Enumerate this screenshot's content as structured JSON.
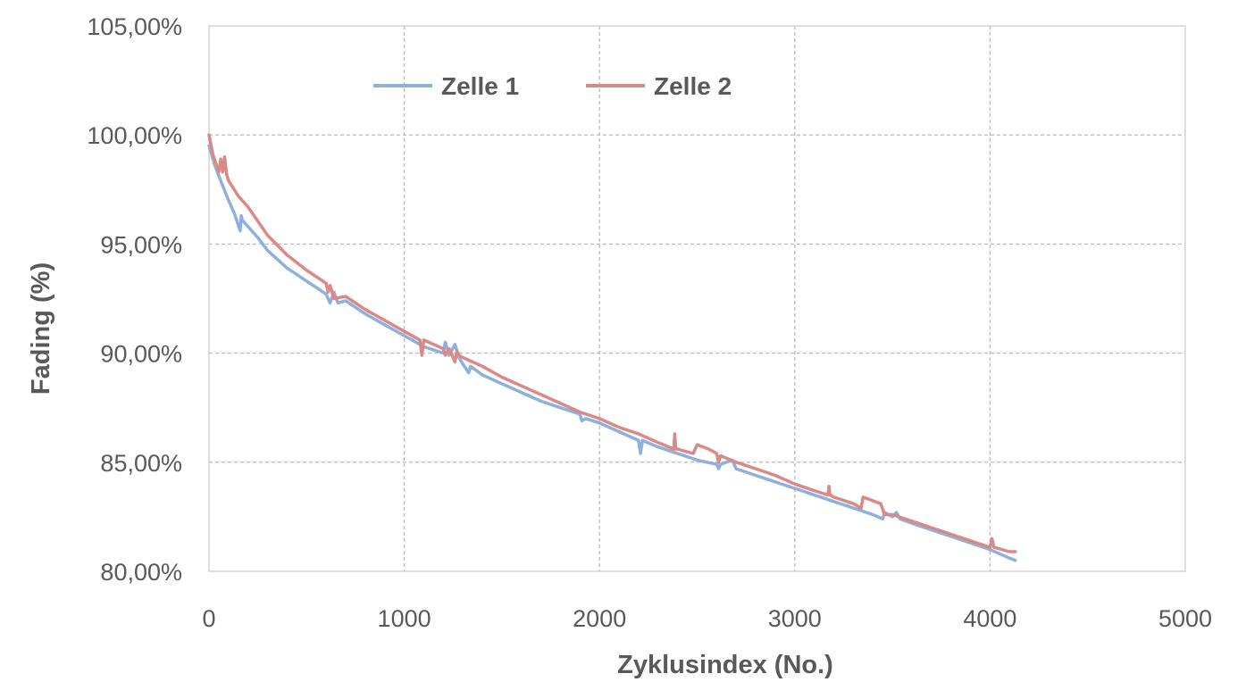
{
  "chart_data": {
    "type": "line",
    "title": "",
    "xlabel": "Zyklusindex (No.)",
    "ylabel": "Fading (%)",
    "xlim": [
      0,
      5000
    ],
    "ylim": [
      80,
      105
    ],
    "x_ticks": [
      "0",
      "1000",
      "2000",
      "3000",
      "4000",
      "5000"
    ],
    "y_ticks": [
      "80,00%",
      "85,00%",
      "90,00%",
      "95,00%",
      "100,00%",
      "105,00%"
    ],
    "grid": true,
    "legend_position": "top-left",
    "series": [
      {
        "name": "Zelle 1",
        "color": "#8FB0DC",
        "x": [
          0,
          30,
          60,
          100,
          130,
          160,
          165,
          170,
          200,
          250,
          300,
          400,
          500,
          600,
          620,
          640,
          660,
          700,
          800,
          900,
          1000,
          1100,
          1200,
          1210,
          1230,
          1260,
          1280,
          1300,
          1330,
          1340,
          1400,
          1500,
          1600,
          1700,
          1800,
          1900,
          1910,
          1930,
          2000,
          2100,
          2200,
          2210,
          2220,
          2300,
          2400,
          2500,
          2600,
          2610,
          2620,
          2680,
          2700,
          2800,
          2900,
          3000,
          3100,
          3200,
          3300,
          3400,
          3450,
          3460,
          3500,
          3520,
          3540,
          3600,
          3700,
          3800,
          3900,
          4000,
          4100,
          4130
        ],
        "y": [
          99.5,
          98.6,
          97.9,
          97.0,
          96.4,
          95.6,
          96.3,
          96.1,
          95.8,
          95.3,
          94.7,
          93.9,
          93.3,
          92.7,
          92.3,
          92.8,
          92.3,
          92.4,
          91.8,
          91.3,
          90.8,
          90.3,
          90.0,
          90.5,
          89.9,
          90.4,
          89.8,
          89.5,
          89.1,
          89.4,
          89.0,
          88.6,
          88.2,
          87.8,
          87.5,
          87.2,
          86.9,
          87.0,
          86.8,
          86.4,
          86.0,
          85.4,
          86.0,
          85.7,
          85.4,
          85.1,
          84.9,
          84.7,
          84.9,
          85.1,
          84.7,
          84.4,
          84.1,
          83.8,
          83.5,
          83.2,
          82.9,
          82.6,
          82.4,
          82.7,
          82.5,
          82.7,
          82.4,
          82.2,
          81.9,
          81.6,
          81.3,
          81.0,
          80.6,
          80.5
        ]
      },
      {
        "name": "Zelle 2",
        "color": "#D98A87",
        "x": [
          0,
          20,
          50,
          60,
          70,
          80,
          90,
          100,
          150,
          200,
          300,
          400,
          500,
          600,
          610,
          620,
          640,
          700,
          800,
          900,
          1000,
          1080,
          1090,
          1100,
          1150,
          1200,
          1210,
          1230,
          1260,
          1270,
          1280,
          1300,
          1400,
          1500,
          1600,
          1700,
          1800,
          1900,
          2000,
          2100,
          2200,
          2300,
          2380,
          2385,
          2390,
          2400,
          2480,
          2500,
          2560,
          2600,
          2610,
          2620,
          2700,
          2800,
          2900,
          3000,
          3100,
          3170,
          3175,
          3180,
          3200,
          3300,
          3340,
          3350,
          3440,
          3460,
          3500,
          3600,
          3700,
          3800,
          3900,
          4000,
          4010,
          4020,
          4100,
          4130
        ],
        "y": [
          100.0,
          99.1,
          98.3,
          98.9,
          98.3,
          99.0,
          98.2,
          97.9,
          97.2,
          96.7,
          95.4,
          94.5,
          93.8,
          93.2,
          92.8,
          93.1,
          92.5,
          92.6,
          92.0,
          91.5,
          91.0,
          90.6,
          89.9,
          90.6,
          90.4,
          90.2,
          89.9,
          90.2,
          89.6,
          90.1,
          89.9,
          89.8,
          89.4,
          88.9,
          88.5,
          88.1,
          87.7,
          87.3,
          87.0,
          86.6,
          86.3,
          85.9,
          85.6,
          86.3,
          85.6,
          85.6,
          85.4,
          85.8,
          85.6,
          85.4,
          85.0,
          85.3,
          85.0,
          84.7,
          84.4,
          84.0,
          83.7,
          83.5,
          83.9,
          83.5,
          83.4,
          83.1,
          82.9,
          83.4,
          83.1,
          82.6,
          82.6,
          82.3,
          82.0,
          81.7,
          81.4,
          81.1,
          81.5,
          81.1,
          80.9,
          80.9
        ]
      }
    ]
  }
}
